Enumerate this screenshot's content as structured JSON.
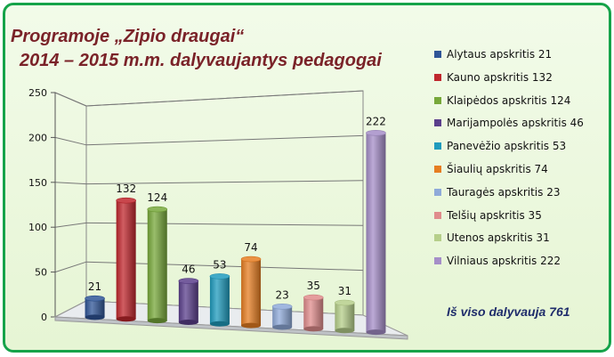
{
  "title_lines": [
    "Programoje „Zipio draugai“",
    "2014 – 2015 m.m. dalyvaujantys pedagogai"
  ],
  "total_text": "Iš viso dalyvauja 761",
  "chart_data": {
    "type": "bar",
    "categories": [
      "Alytaus apskritis",
      "Kauno apskritis",
      "Klaipėdos apskritis",
      "Marijampolės apskritis",
      "Panevėžio apskritis",
      "Šiaulių apskritis",
      "Tauragės apskritis",
      "Telšių apskritis",
      "Utenos apskritis",
      "Vilniaus apskritis"
    ],
    "values": [
      21,
      132,
      124,
      46,
      53,
      74,
      23,
      35,
      31,
      222
    ],
    "legend_labels": [
      "Alytaus apskritis  21",
      "Kauno apskritis 132",
      "Klaipėdos apskritis  124",
      "Marijampolės apskritis  46",
      "Panevėžio apskritis  53",
      "Šiaulių apskritis  74",
      "Tauragės apskritis  23",
      "Telšių apskritis  35",
      "Utenos apskritis 31",
      "Vilniaus apskritis  222"
    ],
    "colors": [
      "#2f5597",
      "#c0272d",
      "#77a83a",
      "#5b3f8c",
      "#1f9bbd",
      "#e67e22",
      "#8faad9",
      "#e08c8c",
      "#b6cf8a",
      "#a58ec8"
    ],
    "ylim": [
      0,
      250
    ],
    "yticks": [
      0,
      50,
      100,
      150,
      200,
      250
    ],
    "grid": true,
    "legend_position": "right",
    "xlabel": "",
    "ylabel": ""
  }
}
